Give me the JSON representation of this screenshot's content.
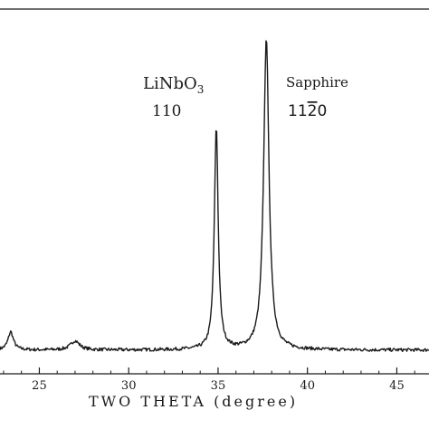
{
  "chart_data": {
    "type": "line",
    "xlabel": "TWO THETA (degree)",
    "ylabel": "",
    "xlim": [
      22.8,
      46.8
    ],
    "ylim": [
      0,
      100
    ],
    "x_ticks": [
      25,
      30,
      35,
      40,
      45
    ],
    "x_tick_labels": [
      "25",
      "30",
      "35",
      "40",
      "45"
    ],
    "grid": false,
    "legend": "none",
    "line_color": "#1a1a1a",
    "baseline": 6.5,
    "peaks": [
      {
        "x": 23.4,
        "height": 5.0,
        "width": 0.18
      },
      {
        "x": 27.0,
        "height": 2.5,
        "width": 0.3
      },
      {
        "x": 34.9,
        "height": 61.0,
        "width": 0.13
      },
      {
        "x": 37.7,
        "height": 85.5,
        "width": 0.18
      }
    ],
    "annotations": [
      {
        "id": "linbo3",
        "line1": "LiNbO",
        "subscript": "3",
        "line2": "110",
        "x": 34.9
      },
      {
        "id": "sapphire",
        "line1": "Sapphire",
        "miller_pre": "11",
        "miller_bar": "2",
        "miller_post": "0",
        "x": 37.7
      }
    ]
  }
}
